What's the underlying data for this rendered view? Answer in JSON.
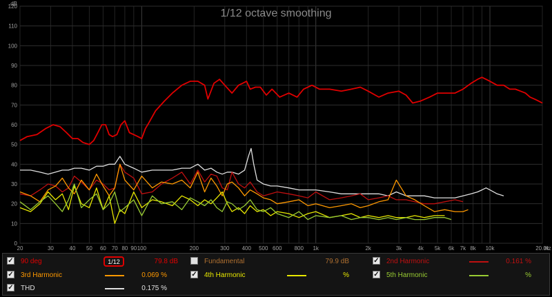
{
  "chart_data": {
    "type": "line",
    "title": "1/12 octave smoothing",
    "xlabel": "Hz",
    "ylabel": "dB",
    "xscale": "log",
    "xlim": [
      20,
      20000
    ],
    "ylim": [
      0,
      120
    ],
    "grid": true,
    "y_ticks": [
      "0",
      "10",
      "20",
      "30",
      "40",
      "50",
      "60",
      "70",
      "80",
      "90",
      "100",
      "110",
      "120"
    ],
    "x_ticks": [
      {
        "v": 20,
        "t": "20"
      },
      {
        "v": 30,
        "t": "30"
      },
      {
        "v": 40,
        "t": "40"
      },
      {
        "v": 50,
        "t": "50"
      },
      {
        "v": 60,
        "t": "60"
      },
      {
        "v": 70,
        "t": "70"
      },
      {
        "v": 80,
        "t": "80"
      },
      {
        "v": 90,
        "t": "90"
      },
      {
        "v": 100,
        "t": "100"
      },
      {
        "v": 200,
        "t": "200"
      },
      {
        "v": 300,
        "t": "300"
      },
      {
        "v": 400,
        "t": "400"
      },
      {
        "v": 500,
        "t": "500"
      },
      {
        "v": 600,
        "t": "600"
      },
      {
        "v": 800,
        "t": "800"
      },
      {
        "v": 1000,
        "t": "1k"
      },
      {
        "v": 2000,
        "t": "2k"
      },
      {
        "v": 3000,
        "t": "3k"
      },
      {
        "v": 4000,
        "t": "4k"
      },
      {
        "v": 5000,
        "t": "5k"
      },
      {
        "v": 6000,
        "t": "6k"
      },
      {
        "v": 7000,
        "t": "7k"
      },
      {
        "v": 8000,
        "t": "8k"
      },
      {
        "v": 10000,
        "t": "10k"
      },
      {
        "v": 20000,
        "t": "20.0k"
      }
    ],
    "series": [
      {
        "name": "90 deg",
        "color": "#e00000",
        "x": [
          20,
          22,
          25,
          28,
          31,
          34,
          37,
          40,
          43,
          46,
          50,
          53,
          56,
          59,
          62,
          65,
          68,
          72,
          76,
          80,
          85,
          90,
          95,
          100,
          105,
          110,
          120,
          135,
          150,
          170,
          190,
          210,
          230,
          240,
          260,
          280,
          300,
          330,
          360,
          380,
          400,
          420,
          450,
          480,
          520,
          560,
          620,
          700,
          780,
          850,
          950,
          1050,
          1200,
          1400,
          1600,
          1800,
          2000,
          2300,
          2600,
          3000,
          3300,
          3600,
          4000,
          4500,
          5000,
          5600,
          6300,
          7000,
          7800,
          8500,
          9000,
          9500,
          10000,
          11000,
          12000,
          13000,
          14000,
          15000,
          16000,
          17000,
          18000,
          19000,
          20000
        ],
        "y": [
          52,
          54,
          55,
          58,
          60,
          59,
          56,
          53,
          53,
          51,
          50,
          52,
          56,
          60,
          60,
          55,
          54,
          55,
          60,
          62,
          56,
          55,
          54,
          53,
          58,
          61,
          67,
          72,
          76,
          80,
          82,
          82,
          80,
          73,
          81,
          83,
          80,
          76,
          80,
          81,
          82,
          78,
          79,
          79,
          75,
          78,
          74,
          76,
          74,
          78,
          80,
          78,
          78,
          77,
          78,
          79,
          77,
          74,
          76,
          77,
          75,
          71,
          72,
          74,
          76,
          76,
          76,
          78,
          81,
          83,
          84,
          83,
          82,
          80,
          80,
          78,
          78,
          77,
          76,
          74,
          73,
          72,
          71
        ]
      },
      {
        "name": "2nd Harmonic",
        "color": "#c01010",
        "x": [
          20,
          23,
          26,
          29,
          32,
          35,
          38,
          41,
          45,
          50,
          55,
          60,
          65,
          70,
          75,
          80,
          90,
          100,
          115,
          130,
          150,
          170,
          190,
          210,
          230,
          250,
          270,
          290,
          310,
          330,
          360,
          390,
          420,
          460,
          500,
          550,
          600,
          700,
          800,
          900,
          1000,
          1200,
          1400,
          1600,
          1800,
          2000,
          2300,
          2600,
          2900,
          3300,
          3700,
          4200,
          4800,
          5500,
          6300,
          7000
        ],
        "y": [
          25,
          24,
          27,
          30,
          29,
          26,
          28,
          34,
          31,
          27,
          32,
          30,
          27,
          28,
          40,
          36,
          33,
          25,
          26,
          30,
          33,
          36,
          30,
          37,
          31,
          35,
          34,
          28,
          27,
          36,
          30,
          28,
          31,
          26,
          24,
          25,
          26,
          25,
          24,
          23,
          26,
          22,
          23,
          24,
          25,
          22,
          23,
          24,
          22,
          22,
          21,
          20,
          20,
          21,
          22,
          21
        ]
      },
      {
        "name": "3rd Harmonic",
        "color": "#ff9900",
        "x": [
          20,
          23,
          26,
          29,
          32,
          35,
          38,
          41,
          45,
          50,
          55,
          60,
          65,
          70,
          75,
          80,
          90,
          100,
          115,
          130,
          150,
          170,
          190,
          210,
          230,
          250,
          270,
          290,
          310,
          330,
          360,
          390,
          420,
          460,
          500,
          550,
          600,
          700,
          800,
          900,
          1000,
          1200,
          1400,
          1600,
          1800,
          2000,
          2300,
          2600,
          2900,
          3300,
          3700,
          4200,
          4800,
          5500,
          6300,
          7000,
          7500
        ],
        "y": [
          26,
          24,
          21,
          27,
          29,
          33,
          28,
          25,
          32,
          27,
          35,
          29,
          24,
          28,
          40,
          32,
          27,
          34,
          28,
          31,
          30,
          32,
          28,
          36,
          26,
          33,
          29,
          24,
          30,
          31,
          28,
          24,
          27,
          25,
          23,
          22,
          20,
          21,
          22,
          19,
          20,
          18,
          19,
          20,
          18,
          19,
          21,
          22,
          32,
          24,
          22,
          19,
          16,
          17,
          16,
          16,
          17
        ]
      },
      {
        "name": "4th Harmonic",
        "color": "#e8e800",
        "x": [
          20,
          23,
          26,
          29,
          32,
          35,
          38,
          41,
          45,
          50,
          55,
          60,
          65,
          70,
          75,
          80,
          90,
          100,
          115,
          130,
          150,
          170,
          190,
          210,
          230,
          250,
          270,
          290,
          310,
          330,
          360,
          390,
          420,
          460,
          500,
          550,
          600,
          700,
          800,
          900,
          1000,
          1200,
          1400,
          1600,
          1800,
          2000,
          2300,
          2600,
          2900,
          3300,
          3700,
          4200,
          4800,
          5500
        ],
        "y": [
          18,
          16,
          20,
          26,
          22,
          25,
          17,
          29,
          20,
          18,
          28,
          17,
          24,
          10,
          17,
          15,
          26,
          18,
          22,
          21,
          19,
          24,
          22,
          19,
          22,
          20,
          23,
          26,
          20,
          16,
          18,
          15,
          19,
          16,
          17,
          14,
          16,
          15,
          13,
          15,
          16,
          13,
          14,
          15,
          13,
          14,
          13,
          14,
          13,
          13,
          14,
          13,
          14,
          14
        ]
      },
      {
        "name": "5th Harmonic",
        "color": "#99cc33",
        "x": [
          20,
          23,
          26,
          29,
          32,
          35,
          38,
          41,
          45,
          50,
          55,
          60,
          65,
          70,
          75,
          80,
          90,
          100,
          115,
          130,
          150,
          170,
          190,
          210,
          230,
          250,
          270,
          290,
          310,
          330,
          360,
          390,
          420,
          460,
          500,
          550,
          600,
          700,
          800,
          900,
          1000,
          1200,
          1400,
          1600,
          1800,
          2000,
          2300,
          2600,
          2900,
          3300,
          3700,
          4200,
          4800,
          5500,
          6000
        ],
        "y": [
          21,
          17,
          21,
          24,
          20,
          16,
          22,
          30,
          18,
          22,
          25,
          17,
          20,
          26,
          16,
          18,
          22,
          14,
          24,
          20,
          21,
          17,
          23,
          21,
          19,
          22,
          18,
          16,
          21,
          20,
          17,
          19,
          22,
          17,
          16,
          18,
          15,
          13,
          16,
          12,
          14,
          13,
          14,
          12,
          13,
          13,
          12,
          13,
          12,
          13,
          12,
          12,
          13,
          13,
          12
        ]
      },
      {
        "name": "THD",
        "color": "#e0e0e0",
        "x": [
          20,
          23,
          26,
          29,
          32,
          35,
          38,
          41,
          45,
          50,
          55,
          60,
          65,
          70,
          75,
          80,
          90,
          100,
          115,
          130,
          150,
          170,
          190,
          210,
          230,
          250,
          270,
          290,
          310,
          330,
          360,
          390,
          410,
          425,
          440,
          460,
          500,
          550,
          600,
          700,
          800,
          900,
          1000,
          1200,
          1400,
          1600,
          1800,
          2000,
          2300,
          2600,
          2900,
          3300,
          3700,
          4200,
          4800,
          5500,
          6300,
          7000,
          7800,
          8500,
          9000,
          9500,
          10000,
          11000,
          12000
        ],
        "y": [
          37,
          37,
          36,
          35,
          36,
          37,
          37,
          38,
          38,
          37,
          39,
          39,
          40,
          40,
          44,
          40,
          38,
          36,
          37,
          37,
          37,
          38,
          38,
          40,
          37,
          38,
          36,
          35,
          36,
          36,
          35,
          37,
          44,
          48,
          40,
          32,
          30,
          29,
          29,
          28,
          27,
          27,
          27,
          26,
          25,
          25,
          25,
          25,
          25,
          24,
          26,
          24,
          24,
          24,
          23,
          23,
          23,
          24,
          25,
          26,
          27,
          28,
          27,
          25,
          24
        ]
      }
    ]
  },
  "legend": {
    "rows": [
      [
        {
          "label": "90 deg",
          "value": "79.8 dB",
          "color": "#e00000",
          "checked": "✓"
        },
        {
          "label": "Fundamental",
          "value": "79.9 dB",
          "color": "#b07030",
          "checked": ""
        },
        {
          "label": "2nd Harmonic",
          "value": "0.161 %",
          "color": "#c01010",
          "checked": "✓"
        }
      ],
      [
        {
          "label": "3rd Harmonic",
          "value": "0.069 %",
          "color": "#ff9900",
          "checked": "✓"
        },
        {
          "label": "4th Harmonic",
          "value": "%",
          "color": "#e8e800",
          "checked": "✓"
        },
        {
          "label": "5th Harmonic",
          "value": "%",
          "color": "#99cc33",
          "checked": "✓"
        }
      ],
      [
        {
          "label": "THD",
          "value": "0.175 %",
          "color": "#e0e0e0",
          "checked": "✓"
        }
      ]
    ],
    "smoothing_label": "1/12",
    "label_colors": {
      "fundamental": "#b07030"
    }
  }
}
